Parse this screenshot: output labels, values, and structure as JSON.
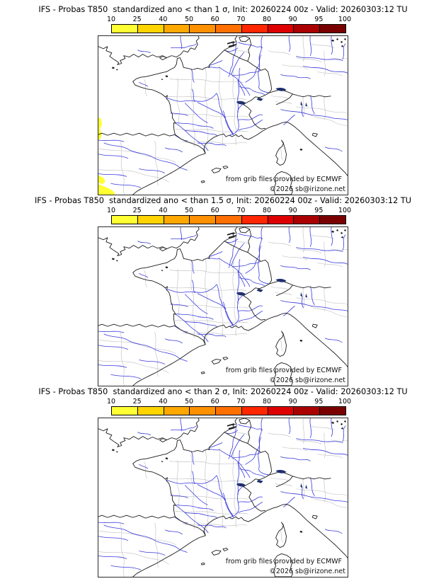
{
  "page": {
    "background": "#ffffff"
  },
  "colorbar": {
    "tick_labels": [
      "10",
      "25",
      "40",
      "50",
      "60",
      "70",
      "80",
      "90",
      "95",
      "100"
    ],
    "segment_colors": [
      "#ffff33",
      "#ffd400",
      "#ffa800",
      "#ff9000",
      "#ff7000",
      "#ff2600",
      "#de0000",
      "#aa0000",
      "#7a0000"
    ]
  },
  "panels": [
    {
      "id": "sigma-1",
      "title": "IFS - Probas T850  standardized ano < than 1 σ, Init: 20260224 00z - Valid: 20260303:12 TU",
      "threshold_label": "< than 1 σ",
      "has_shading": true
    },
    {
      "id": "sigma-1.5",
      "title": "IFS - Probas T850  standardized ano < than 1.5 σ, Init: 20260224 00z - Valid: 20260303:12 TU",
      "threshold_label": "< than 1.5 σ",
      "has_shading": false
    },
    {
      "id": "sigma-2",
      "title": "IFS - Probas T850  standardized ano < than 2 σ, Init: 20260224 00z - Valid: 20260303:12 TU",
      "threshold_label": "< than 2 σ",
      "has_shading": false
    }
  ],
  "map_credits": {
    "line1": "from grib files provided by ECMWF",
    "line2": "©2026 sb@irizone.net"
  },
  "map_colors": {
    "coastline": "#1a1a1a",
    "rivers": "#3939dd",
    "admin_borders": "#c6c6c6",
    "lakes": "#1f2f6e",
    "shading": "#ffff33"
  }
}
